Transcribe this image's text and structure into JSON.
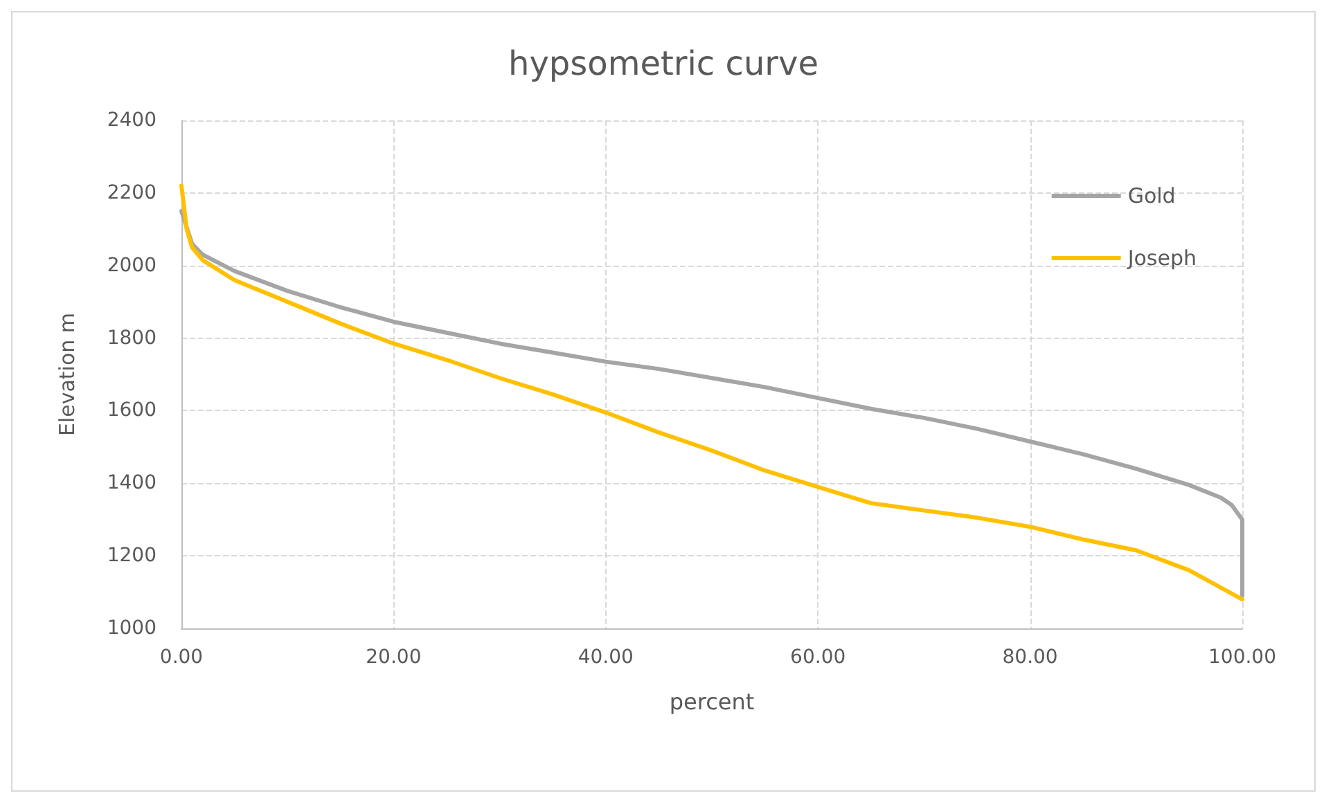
{
  "chart_data": {
    "type": "line",
    "title": "hypsometric curve",
    "xlabel": "percent",
    "ylabel": "Elevation m",
    "xlim": [
      0,
      100
    ],
    "xticks": [
      {
        "value": 0,
        "label": "0.00"
      },
      {
        "value": 20,
        "label": "20.00"
      },
      {
        "value": 40,
        "label": "40.00"
      },
      {
        "value": 60,
        "label": "60.00"
      },
      {
        "value": 80,
        "label": "80.00"
      },
      {
        "value": 100,
        "label": "100.00"
      }
    ],
    "ylim": [
      1000,
      2400
    ],
    "yticks": [
      1000,
      1200,
      1400,
      1600,
      1800,
      2000,
      2200,
      2400
    ],
    "grid": true,
    "legend": "top right",
    "marker": "none",
    "line_style": "solid",
    "series": [
      {
        "name": "Gold",
        "color": "#a5a5a5",
        "x": [
          0,
          1,
          2,
          5,
          10,
          15,
          20,
          25,
          30,
          35,
          40,
          45,
          50,
          55,
          60,
          65,
          70,
          75,
          80,
          85,
          90,
          95,
          98,
          99,
          100,
          100
        ],
        "values": [
          2150,
          2060,
          2030,
          1985,
          1930,
          1885,
          1845,
          1815,
          1785,
          1760,
          1735,
          1715,
          1690,
          1665,
          1635,
          1605,
          1580,
          1550,
          1515,
          1480,
          1440,
          1395,
          1360,
          1340,
          1300,
          1090
        ]
      },
      {
        "name": "Joseph",
        "color": "#ffc000",
        "x": [
          0,
          0.5,
          1,
          2,
          5,
          10,
          15,
          20,
          25,
          30,
          35,
          40,
          45,
          50,
          55,
          60,
          65,
          70,
          75,
          80,
          85,
          90,
          95,
          100
        ],
        "values": [
          2220,
          2100,
          2050,
          2015,
          1960,
          1900,
          1840,
          1785,
          1740,
          1690,
          1645,
          1595,
          1540,
          1490,
          1435,
          1390,
          1345,
          1325,
          1305,
          1280,
          1245,
          1215,
          1160,
          1080
        ]
      }
    ]
  }
}
